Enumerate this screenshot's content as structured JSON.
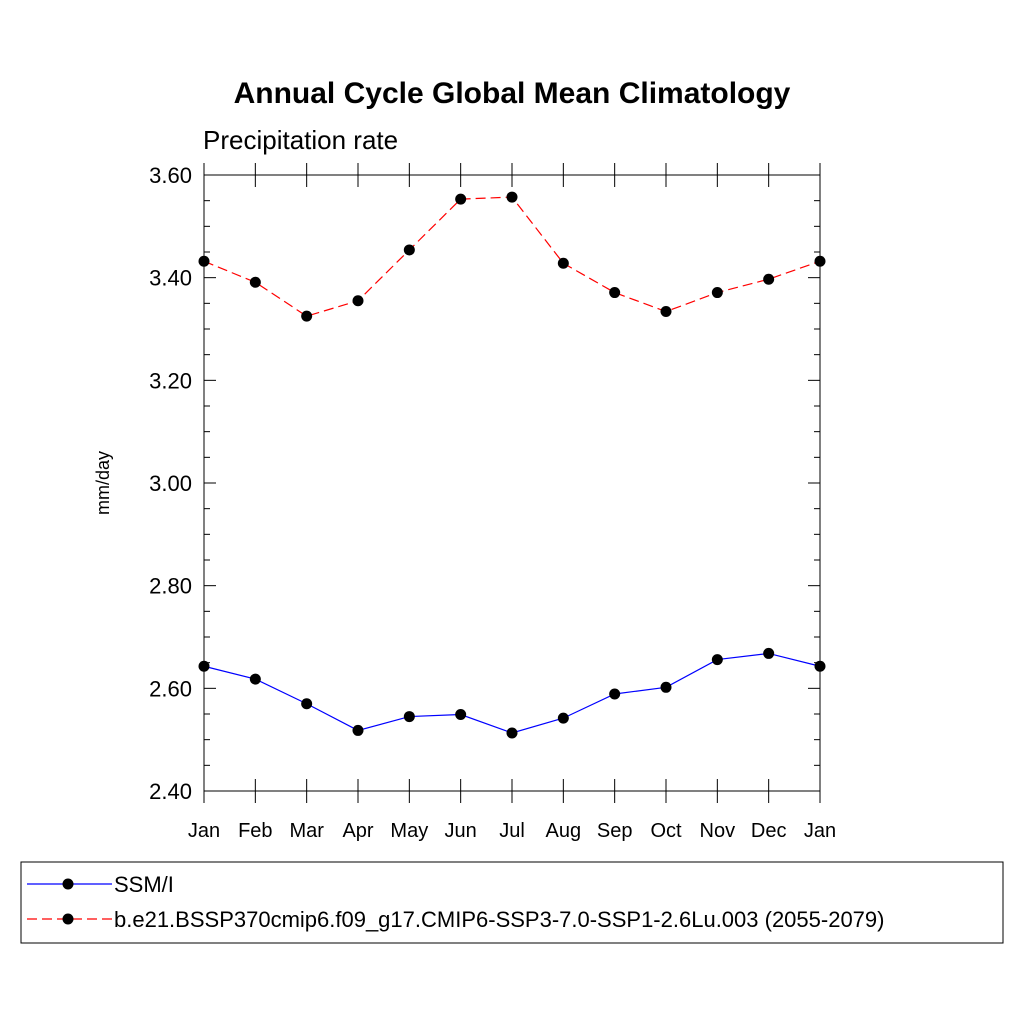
{
  "chart_data": {
    "type": "line",
    "title": "Annual Cycle Global Mean Climatology",
    "subtitle": "Precipitation rate",
    "xlabel": "",
    "ylabel": "mm/day",
    "categories": [
      "Jan",
      "Feb",
      "Mar",
      "Apr",
      "May",
      "Jun",
      "Jul",
      "Aug",
      "Sep",
      "Oct",
      "Nov",
      "Dec",
      "Jan"
    ],
    "ylim": [
      2.4,
      3.6
    ],
    "yticks": [
      "2.40",
      "2.60",
      "2.80",
      "3.00",
      "3.20",
      "3.40",
      "3.60"
    ],
    "grid": false,
    "legend_position": "bottom",
    "series": [
      {
        "name": "SSM/I",
        "color": "#0000ff",
        "dash": "solid",
        "values": [
          2.643,
          2.618,
          2.57,
          2.518,
          2.545,
          2.549,
          2.513,
          2.542,
          2.589,
          2.602,
          2.656,
          2.668,
          2.643
        ]
      },
      {
        "name": "b.e21.BSSP370cmip6.f09_g17.CMIP6-SSP3-7.0-SSP1-2.6Lu.003 (2055-2079)",
        "color": "#ff0000",
        "dash": "dashed",
        "values": [
          3.432,
          3.391,
          3.325,
          3.355,
          3.454,
          3.553,
          3.557,
          3.428,
          3.371,
          3.334,
          3.371,
          3.397,
          3.432
        ]
      }
    ]
  }
}
